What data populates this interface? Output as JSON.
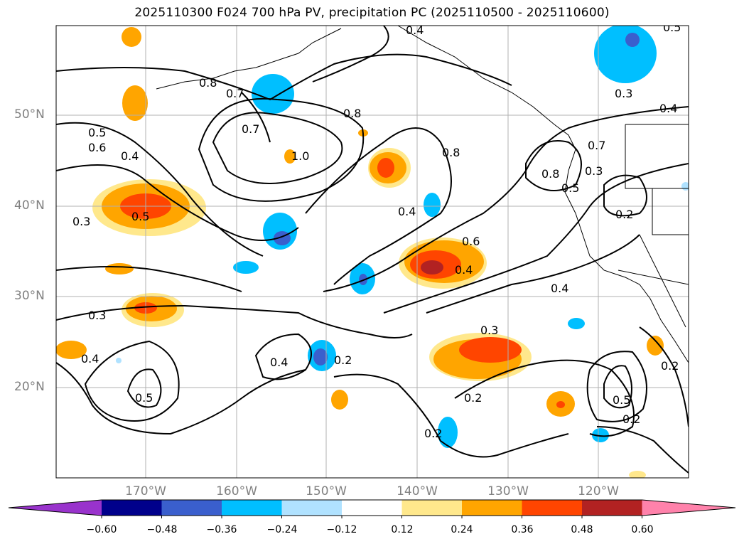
{
  "title": "2025110300 F024 700 hPa PV, precipitation PC (2025110500 - 2025110600)",
  "map": {
    "lat_labels": [
      "50°N",
      "40°N",
      "30°N",
      "20°N"
    ],
    "lon_labels": [
      "170°W",
      "160°W",
      "150°W",
      "140°W",
      "130°W",
      "120°W"
    ],
    "contour_labels": [
      "0.8",
      "0.7",
      "0.5",
      "0.6",
      "0.4",
      "0.3",
      "0.7",
      "1.0",
      "0.8",
      "0.8",
      "0.4",
      "0.6",
      "0.4",
      "0.3",
      "0.4",
      "0.5",
      "0.3",
      "0.2",
      "0.4",
      "0.8",
      "0.7",
      "0.3",
      "0.5",
      "0.4",
      "0.3",
      "0.5",
      "0.2",
      "0.2",
      "0.2",
      "0.5",
      "0.2",
      "0.2",
      "0.5",
      "0.4",
      "0.4"
    ]
  },
  "colorbar": {
    "colors": [
      "#9933cc",
      "#00008b",
      "#3a5fcd",
      "#00bfff",
      "#b0e2ff",
      "#ffffff",
      "#ffe88c",
      "#ffa500",
      "#ff4500",
      "#b22222",
      "#ff82ab"
    ],
    "tick_labels": [
      "−0.60",
      "−0.48",
      "−0.36",
      "−0.24",
      "−0.12",
      "0.12",
      "0.24",
      "0.36",
      "0.48",
      "0.60"
    ]
  }
}
